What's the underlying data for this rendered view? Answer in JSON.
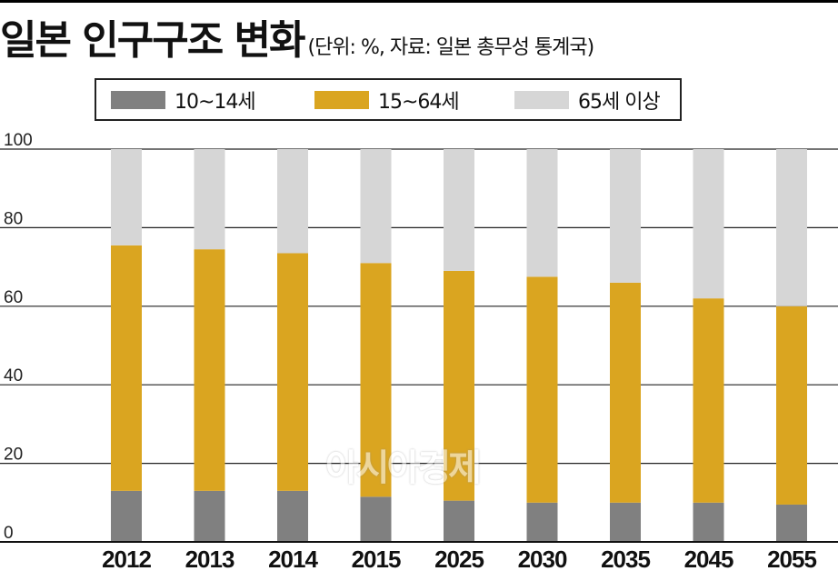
{
  "header": {
    "title": "일본 인구구조 변화",
    "subtitle": "(단위: %, 자료: 일본 총무성 통계국)"
  },
  "watermark": "아시아경제",
  "colors": {
    "age_0_14": "#808080",
    "age_15_64": "#DAA520",
    "age_65_plus": "#D6D6D6",
    "grid": "#222222"
  },
  "chart_data": {
    "type": "bar",
    "stacked": true,
    "categories": [
      "2012",
      "2013",
      "2014",
      "2015",
      "2025",
      "2030",
      "2035",
      "2045",
      "2055"
    ],
    "series": [
      {
        "name": "10~14세",
        "values": [
          13,
          13,
          13,
          11.5,
          10.5,
          10,
          10,
          10,
          9.5
        ]
      },
      {
        "name": "15~64세",
        "values": [
          62.5,
          61.5,
          60.5,
          59.5,
          58.5,
          57.5,
          56,
          52,
          50.5
        ]
      },
      {
        "name": "65세 이상",
        "values": [
          24.5,
          25.5,
          26.5,
          29,
          31,
          32.5,
          34,
          38,
          40
        ]
      }
    ],
    "ylim": [
      0,
      100
    ],
    "yticks": [
      "0",
      "20",
      "40",
      "60",
      "80",
      "100"
    ],
    "grid": true,
    "legend_position": "top"
  }
}
